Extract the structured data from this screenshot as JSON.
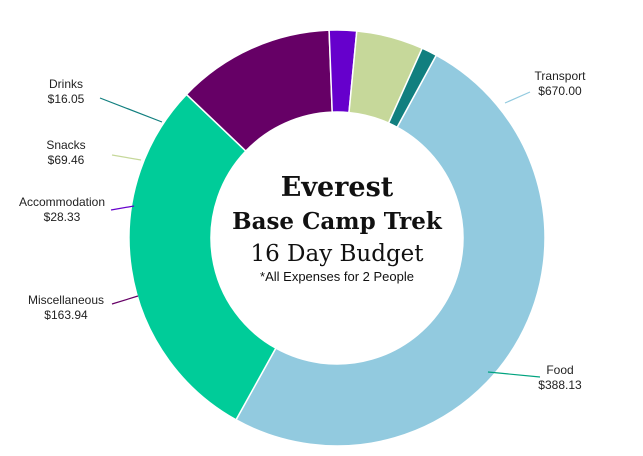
{
  "chart_data": {
    "type": "pie",
    "style": "donut",
    "title_lines": [
      "Everest",
      "Base Camp Trek",
      "16 Day Budget",
      "*All Expenses for 2 People"
    ],
    "start_category": "Transport",
    "direction": "clockwise",
    "slices": [
      {
        "label": "Transport",
        "value": 670.0,
        "value_label": "$670.00",
        "color": "#92cadf"
      },
      {
        "label": "Food",
        "value": 388.13,
        "value_label": "$388.13",
        "color": "#00cc99"
      },
      {
        "label": "Miscellaneous",
        "value": 163.94,
        "value_label": "$163.94",
        "color": "#660066"
      },
      {
        "label": "Accommodation",
        "value": 28.33,
        "value_label": "$28.33",
        "color": "#6600cc"
      },
      {
        "label": "Snacks",
        "value": 69.46,
        "value_label": "$69.46",
        "color": "#c6d89a"
      },
      {
        "label": "Drinks",
        "value": 16.05,
        "value_label": "$16.05",
        "color": "#117f7f"
      }
    ],
    "leader_line_colors": [
      "#92cadf",
      "#00a37f",
      "#660066",
      "#6600cc",
      "#c6d89a",
      "#117f7f"
    ]
  }
}
